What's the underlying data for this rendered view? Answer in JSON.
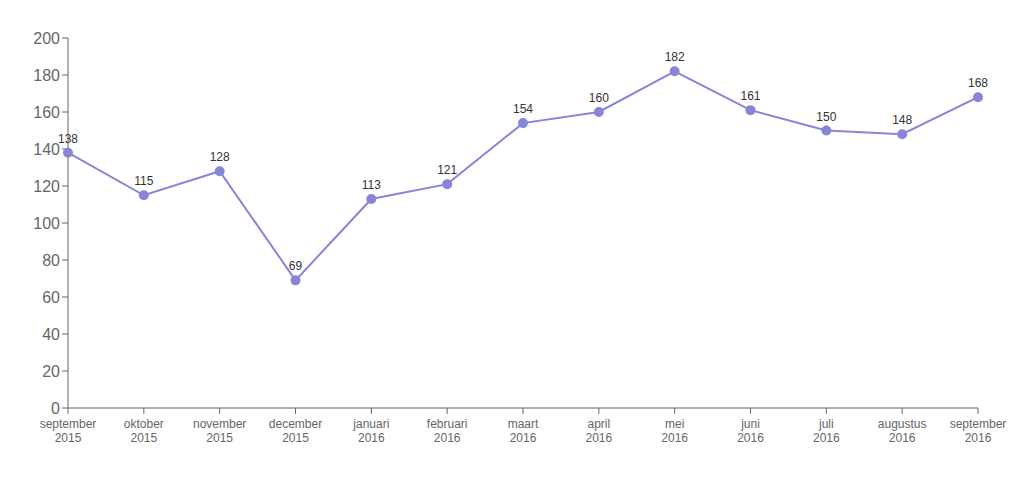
{
  "chart_data": {
    "type": "line",
    "categories": [
      "september\n2015",
      "oktober\n2015",
      "november\n2015",
      "december\n2015",
      "januari\n2016",
      "februari\n2016",
      "maart\n2016",
      "april\n2016",
      "mei\n2016",
      "juni\n2016",
      "juli\n2016",
      "augustus\n2016",
      "september\n2016"
    ],
    "values": [
      138,
      115,
      128,
      69,
      113,
      121,
      154,
      160,
      182,
      161,
      150,
      148,
      168
    ],
    "ylim": [
      0,
      200
    ],
    "yticks": [
      0,
      20,
      40,
      60,
      80,
      100,
      120,
      140,
      160,
      180,
      200
    ],
    "grid": false,
    "data_labels": true,
    "marker": "circle"
  }
}
